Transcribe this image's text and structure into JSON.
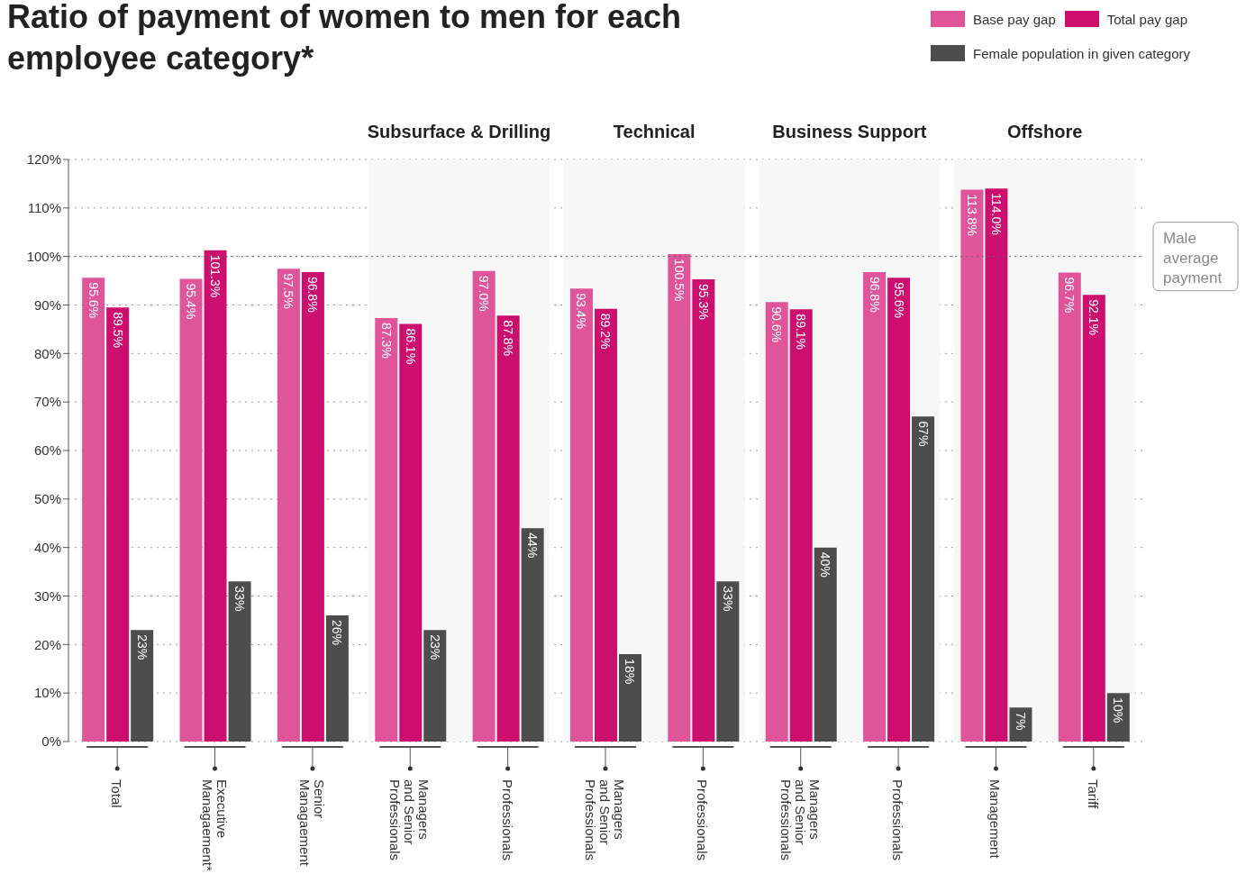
{
  "chart_data": {
    "type": "bar",
    "title": "Ratio of payment of women to men for each employee category*",
    "categories": [
      "Total",
      "Executive Managaement*",
      "Senior Managaement",
      "Managers and Senior Professionals",
      "Professionals",
      "Managers and Senior Professionals",
      "Professionals",
      "Managers and Senior Professionals",
      "Professionals",
      "Management",
      "Tariff"
    ],
    "series": [
      {
        "name": "Base pay gap",
        "color": "#e0559a",
        "values": [
          95.6,
          95.4,
          97.5,
          87.3,
          97.0,
          93.4,
          100.5,
          90.6,
          96.8,
          113.8,
          96.7
        ],
        "value_labels": [
          "95.6%",
          "95.4%",
          "97.5%",
          "87.3%",
          "97.0%",
          "93.4%",
          "100.5%",
          "90.6%",
          "96.8%",
          "113.8%",
          "96.7%"
        ]
      },
      {
        "name": "Total pay gap",
        "color": "#cc0e6e",
        "values": [
          89.5,
          101.3,
          96.8,
          86.1,
          87.8,
          89.2,
          95.3,
          89.1,
          95.6,
          114.0,
          92.1
        ],
        "value_labels": [
          "89.5%",
          "101.3%",
          "96.8%",
          "86.1%",
          "87.8%",
          "89.2%",
          "95.3%",
          "89.1%",
          "95.6%",
          "114.0%",
          "92.1%"
        ]
      },
      {
        "name": "Female population in given category",
        "color": "#4d4d4d",
        "values": [
          23,
          33,
          26,
          23,
          44,
          18,
          33,
          40,
          67,
          7,
          10
        ],
        "value_labels": [
          "23%",
          "33%",
          "26%",
          "23%",
          "44%",
          "18%",
          "33%",
          "40%",
          "67%",
          "7%",
          "10%"
        ]
      }
    ],
    "ylim": [
      0,
      120
    ],
    "yticks": [
      {
        "value": 0,
        "label": "0%"
      },
      {
        "value": 10,
        "label": "10%"
      },
      {
        "value": 20,
        "label": "20%"
      },
      {
        "value": 30,
        "label": "30%"
      },
      {
        "value": 40,
        "label": "40%"
      },
      {
        "value": 50,
        "label": "50%"
      },
      {
        "value": 60,
        "label": "60%"
      },
      {
        "value": 70,
        "label": "70%"
      },
      {
        "value": 80,
        "label": "80%"
      },
      {
        "value": 90,
        "label": "90%"
      },
      {
        "value": 100,
        "label": "100%"
      },
      {
        "value": 110,
        "label": "110%"
      },
      {
        "value": 120,
        "label": "120%"
      }
    ],
    "ref_lines": [
      {
        "axis": "y",
        "value": 100,
        "label": "Male average payment",
        "color": "#666666",
        "line_style": "dotted"
      }
    ],
    "bands": [
      {
        "axis": "x",
        "from": "Managers and Senior Professionals",
        "to": "Professionals",
        "label": "Subsurface & Drilling",
        "color": "#f7f7f7"
      },
      {
        "axis": "x",
        "from": "Management",
        "to": "Tariff",
        "label": "Offshore",
        "color": "#f7f7f7"
      }
    ],
    "annotations": [
      "Technical",
      "Business Support"
    ],
    "grid": "y",
    "legend": "top right"
  }
}
